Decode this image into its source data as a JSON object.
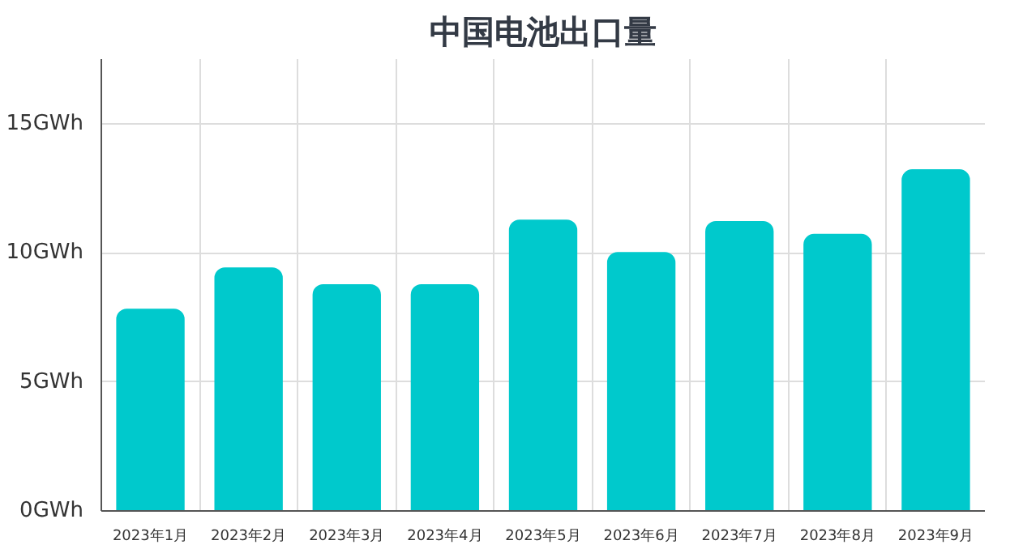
{
  "chart_data": {
    "type": "bar",
    "title": "中国电池出口量",
    "categories": [
      "2023年1月",
      "2023年2月",
      "2023年3月",
      "2023年4月",
      "2023年5月",
      "2023年6月",
      "2023年7月",
      "2023年8月",
      "2023年9月"
    ],
    "values": [
      7.8,
      9.4,
      8.75,
      8.75,
      11.25,
      10.0,
      11.2,
      10.7,
      13.2
    ],
    "color": "#00c9cc",
    "ylim": [
      0,
      17.5
    ],
    "yticks": [
      {
        "value": 0,
        "label": "0GWh"
      },
      {
        "value": 5,
        "label": "5GWh"
      },
      {
        "value": 10,
        "label": "10GWh"
      },
      {
        "value": 15,
        "label": "15GWh"
      }
    ],
    "grid": true
  }
}
